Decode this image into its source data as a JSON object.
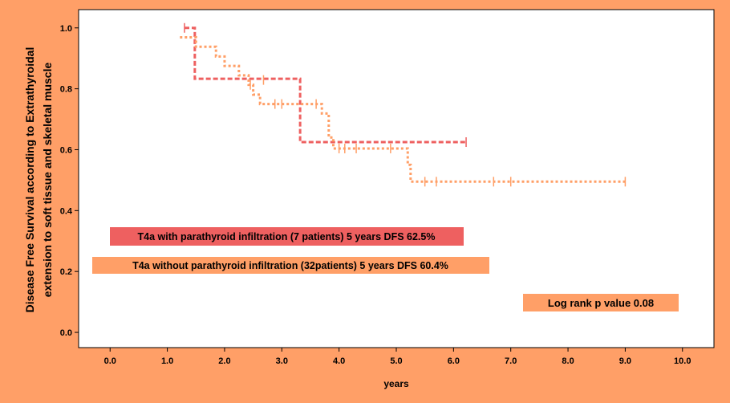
{
  "chart_data": {
    "type": "line",
    "subtype": "kaplan-meier step",
    "xlabel": "years",
    "ylabel_lines": [
      "Disease Free Survival according to Extrathyroidal",
      "extension to soft tissue and skeletal muscle"
    ],
    "x_ticks": [
      "0.0",
      "1.0",
      "2.0",
      "3.0",
      "4.0",
      "5.0",
      "6.0",
      "7.0",
      "8.0",
      "9.0",
      "10.0"
    ],
    "y_ticks": [
      "0.0",
      "0.2",
      "0.4",
      "0.6",
      "0.8",
      "1.0"
    ],
    "xlim": [
      -0.55,
      10.55
    ],
    "ylim": [
      -0.05,
      1.06
    ],
    "grid": false,
    "series": [
      {
        "name": "T4a with parathyroid infiltration (7 patients) 5 years DFS 62.5%",
        "color": "#EE6060",
        "steps": [
          [
            1.3,
            1.0
          ],
          [
            1.48,
            0.833
          ],
          [
            3.32,
            0.625
          ],
          [
            6.22,
            0.625
          ]
        ],
        "censored": [
          [
            1.3,
            1.0
          ],
          [
            6.22,
            0.625
          ]
        ]
      },
      {
        "name": "T4a without parathyroid infiltration (32patients) 5 years DFS 60.4%",
        "color": "#FF9F67",
        "steps": [
          [
            1.22,
            0.969
          ],
          [
            1.5,
            0.938
          ],
          [
            1.85,
            0.906
          ],
          [
            2.0,
            0.875
          ],
          [
            2.25,
            0.844
          ],
          [
            2.42,
            0.813
          ],
          [
            2.5,
            0.781
          ],
          [
            2.62,
            0.75
          ],
          [
            3.7,
            0.719
          ],
          [
            3.82,
            0.64
          ],
          [
            3.9,
            0.604
          ],
          [
            5.2,
            0.55
          ],
          [
            5.25,
            0.495
          ],
          [
            9.0,
            0.495
          ]
        ],
        "censored": [
          [
            2.45,
            0.813
          ],
          [
            2.68,
            0.829
          ],
          [
            2.88,
            0.75
          ],
          [
            3.0,
            0.75
          ],
          [
            3.6,
            0.75
          ],
          [
            4.0,
            0.604
          ],
          [
            4.1,
            0.604
          ],
          [
            4.3,
            0.604
          ],
          [
            4.9,
            0.604
          ],
          [
            5.5,
            0.495
          ],
          [
            5.7,
            0.495
          ],
          [
            6.7,
            0.495
          ],
          [
            7.0,
            0.495
          ],
          [
            9.0,
            0.495
          ]
        ]
      }
    ],
    "legend": {
      "with_label": "T4a with parathyroid infiltration (7 patients) 5 years DFS 62.5%",
      "with_color": "#EE6060",
      "without_label": "T4a without parathyroid infiltration (32patients) 5 years DFS 60.4%",
      "without_color": "#FF9F67"
    },
    "annotation": {
      "text": "Log rank p value 0.08",
      "color": "#FF9F67"
    }
  }
}
